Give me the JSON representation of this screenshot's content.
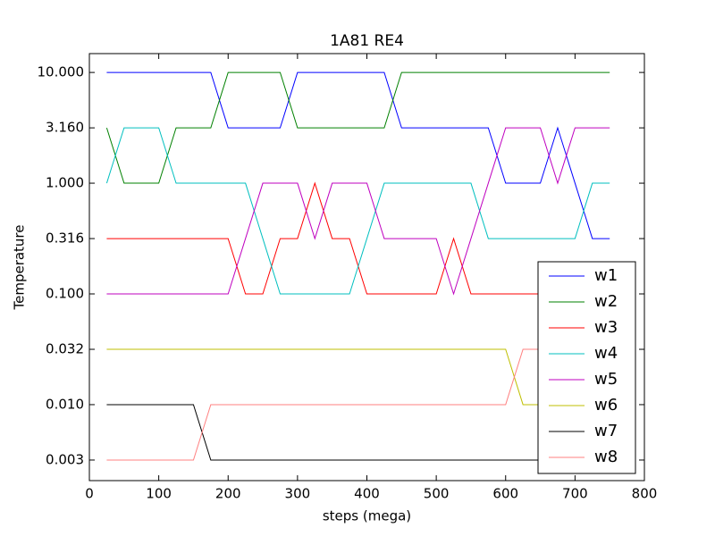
{
  "chart_data": {
    "type": "line",
    "title": "1A81 RE4",
    "x_label": "steps (mega)",
    "y_label": "Temperature",
    "x": [
      25,
      50,
      75,
      100,
      125,
      150,
      175,
      200,
      225,
      250,
      275,
      300,
      325,
      350,
      375,
      400,
      425,
      450,
      475,
      500,
      525,
      550,
      575,
      600,
      625,
      650,
      675,
      700,
      725,
      750
    ],
    "series": [
      {
        "name": "w1",
        "color": "#0000ff",
        "values": [
          10,
          10,
          10,
          10,
          10,
          10,
          10,
          3.16,
          3.16,
          3.16,
          3.16,
          10,
          10,
          10,
          10,
          10,
          10,
          3.16,
          3.16,
          3.16,
          3.16,
          3.16,
          3.16,
          1,
          1,
          1,
          3.16,
          1,
          0.316,
          0.316
        ]
      },
      {
        "name": "w2",
        "color": "#008000",
        "values": [
          3.16,
          1,
          1,
          1,
          3.16,
          3.16,
          3.16,
          10,
          10,
          10,
          10,
          3.16,
          3.16,
          3.16,
          3.16,
          3.16,
          3.16,
          10,
          10,
          10,
          10,
          10,
          10,
          10,
          10,
          10,
          10,
          10,
          10,
          10
        ]
      },
      {
        "name": "w3",
        "color": "#ff0000",
        "values": [
          0.316,
          0.316,
          0.316,
          0.316,
          0.316,
          0.316,
          0.316,
          0.316,
          0.1,
          0.1,
          0.316,
          0.316,
          1,
          0.316,
          0.316,
          0.1,
          0.1,
          0.1,
          0.1,
          0.1,
          0.316,
          0.1,
          0.1,
          0.1,
          0.1,
          0.1,
          0.1,
          0.1,
          0.1,
          0.1
        ]
      },
      {
        "name": "w4",
        "color": "#00bfbf",
        "values": [
          1,
          3.16,
          3.16,
          3.16,
          1,
          1,
          1,
          1,
          1,
          0.316,
          0.1,
          0.1,
          0.1,
          0.1,
          0.1,
          0.316,
          1,
          1,
          1,
          1,
          1,
          1,
          0.316,
          0.316,
          0.316,
          0.316,
          0.316,
          0.316,
          1,
          1
        ]
      },
      {
        "name": "w5",
        "color": "#bf00bf",
        "values": [
          0.1,
          0.1,
          0.1,
          0.1,
          0.1,
          0.1,
          0.1,
          0.1,
          0.316,
          1,
          1,
          1,
          0.316,
          1,
          1,
          1,
          0.316,
          0.316,
          0.316,
          0.316,
          0.1,
          0.316,
          1,
          3.16,
          3.16,
          3.16,
          1,
          3.16,
          3.16,
          3.16
        ]
      },
      {
        "name": "w6",
        "color": "#bfbf00",
        "values": [
          0.0316,
          0.0316,
          0.0316,
          0.0316,
          0.0316,
          0.0316,
          0.0316,
          0.0316,
          0.0316,
          0.0316,
          0.0316,
          0.0316,
          0.0316,
          0.0316,
          0.0316,
          0.0316,
          0.0316,
          0.0316,
          0.0316,
          0.0316,
          0.0316,
          0.0316,
          0.0316,
          0.0316,
          0.01,
          0.01,
          0.01,
          0.01,
          0.01,
          0.01
        ]
      },
      {
        "name": "w7",
        "color": "#000000",
        "values": [
          0.01,
          0.01,
          0.01,
          0.01,
          0.01,
          0.01,
          0.00316,
          0.00316,
          0.00316,
          0.00316,
          0.00316,
          0.00316,
          0.00316,
          0.00316,
          0.00316,
          0.00316,
          0.00316,
          0.00316,
          0.00316,
          0.00316,
          0.00316,
          0.00316,
          0.00316,
          0.00316,
          0.00316,
          0.00316,
          0.00316,
          0.00316,
          0.00316,
          0.00316
        ]
      },
      {
        "name": "w8",
        "color": "#ff8080",
        "values": [
          0.00316,
          0.00316,
          0.00316,
          0.00316,
          0.00316,
          0.00316,
          0.01,
          0.01,
          0.01,
          0.01,
          0.01,
          0.01,
          0.01,
          0.01,
          0.01,
          0.01,
          0.01,
          0.01,
          0.01,
          0.01,
          0.01,
          0.01,
          0.01,
          0.01,
          0.0316,
          0.0316,
          0.0316,
          0.0316,
          0.0316,
          0.0316
        ]
      }
    ],
    "xlim": [
      0,
      800
    ],
    "xticks": [
      0,
      100,
      200,
      300,
      400,
      500,
      600,
      700,
      800
    ],
    "ylim": [
      0.00206,
      14.8
    ],
    "log_y": true,
    "yticks": [
      {
        "value": 0.00316,
        "label": "0.003"
      },
      {
        "value": 0.01,
        "label": "0.010"
      },
      {
        "value": 0.0316,
        "label": "0.032"
      },
      {
        "value": 0.1,
        "label": "0.100"
      },
      {
        "value": 0.316,
        "label": "0.316"
      },
      {
        "value": 1,
        "label": "1.000"
      },
      {
        "value": 3.16,
        "label": "3.160"
      },
      {
        "value": 10,
        "label": "10.000"
      }
    ],
    "grid": false,
    "legend": "lower right"
  }
}
